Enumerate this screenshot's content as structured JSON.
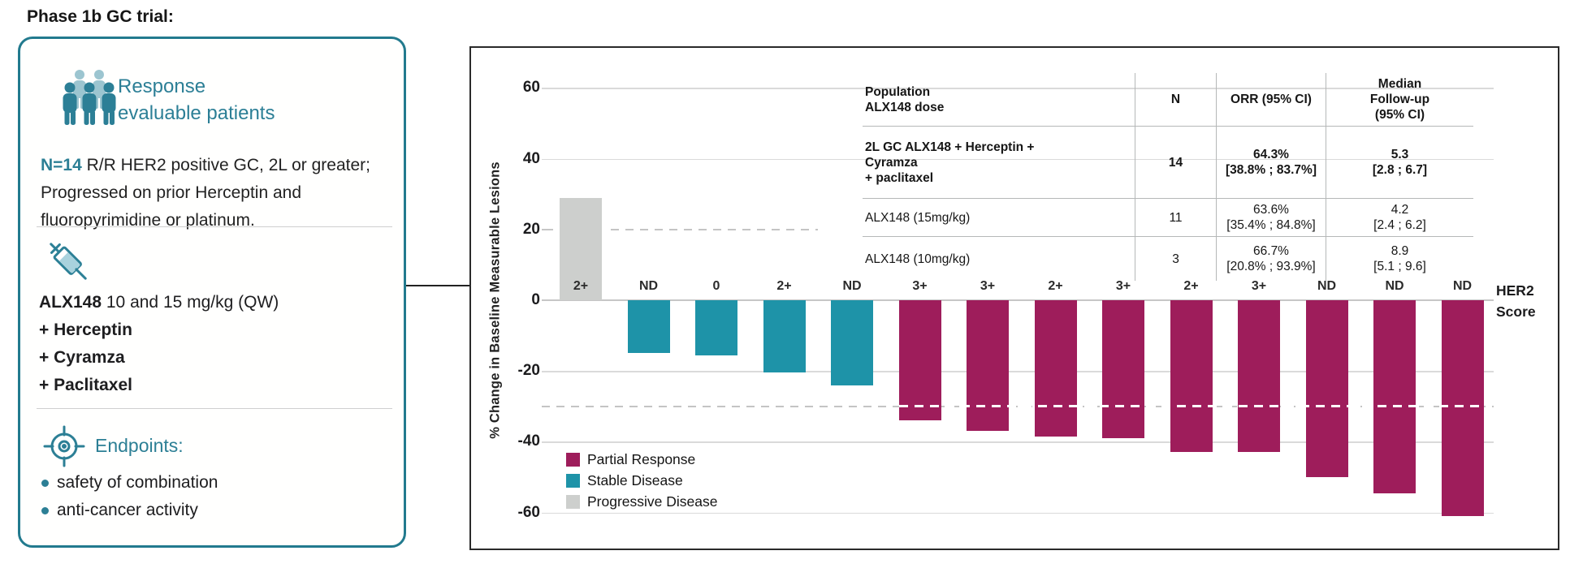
{
  "page": {
    "title": "Phase 1b GC trial:"
  },
  "info_card": {
    "patients_title": "Response\nevaluable patients",
    "n_label": "N=14",
    "n_description": "R/R HER2 positive GC,  2L or greater; Progressed on prior Herceptin and fluoropyrimidine or platinum.",
    "regimen_drug": "ALX148",
    "regimen_dose": " 10 and 15 mg/kg (QW)",
    "regimen_combos": [
      "+ Herceptin",
      "+ Cyramza",
      "+ Paclitaxel"
    ],
    "endpoints_title": "Endpoints:",
    "endpoints": [
      "safety of combination",
      "anti-cancer activity"
    ]
  },
  "chart_data": {
    "type": "bar",
    "title": "",
    "xlabel": "",
    "ylabel": "% Change in Baseline Measurable Lesions",
    "ylim": [
      -65,
      65
    ],
    "yticks": [
      60,
      40,
      20,
      0,
      -20,
      -40,
      -60
    ],
    "solid_gridlines": [
      60,
      40,
      -20,
      -40,
      -60
    ],
    "dashed_reference_lines": [
      20,
      -30
    ],
    "x_axis_right_label": "HER2\nScore",
    "categories": [
      "2+",
      "ND",
      "0",
      "2+",
      "ND",
      "3+",
      "3+",
      "2+",
      "3+",
      "2+",
      "3+",
      "ND",
      "ND",
      "ND"
    ],
    "values": [
      29,
      -15,
      -15.5,
      -20.3,
      -24,
      -34,
      -37,
      -38.5,
      -39,
      -43,
      -43,
      -50,
      -54.5,
      -61
    ],
    "responses": [
      "Progressive Disease",
      "Stable Disease",
      "Stable Disease",
      "Stable Disease",
      "Stable Disease",
      "Partial Response",
      "Partial Response",
      "Partial Response",
      "Partial Response",
      "Partial Response",
      "Partial Response",
      "Partial Response",
      "Partial Response",
      "Partial Response"
    ],
    "legend_position": "lower-left",
    "legend": [
      {
        "label": "Partial Response",
        "color": "#9E1D5B"
      },
      {
        "label": "Stable Disease",
        "color": "#1E93A8"
      },
      {
        "label": "Progressive Disease",
        "color": "#CDCFCD"
      }
    ]
  },
  "results_table": {
    "col_headers": [
      "Population\nALX148 dose",
      "N",
      "ORR (95% CI)",
      "Median\nFollow-up\n(95% CI)"
    ],
    "rows": [
      {
        "population": "2L GC  ALX148 + Herceptin +\nCyramza\n+ paclitaxel",
        "n": "14",
        "orr": "64.3%\n[38.8% ; 83.7%]",
        "median_follow_up": "5.3\n[2.8 ; 6.7]",
        "emphasis": true
      },
      {
        "population": "ALX148 (15mg/kg)",
        "n": "11",
        "orr": "63.6%\n[35.4% ; 84.8%]",
        "median_follow_up": "4.2\n[2.4 ; 6.2]",
        "emphasis": false
      },
      {
        "population": "ALX148 (10mg/kg)",
        "n": "3",
        "orr": "66.7%\n[20.8% ; 93.9%]",
        "median_follow_up": "8.9\n[5.1 ; 9.6]",
        "emphasis": false
      }
    ]
  },
  "colors": {
    "accent_teal": "#227A8E",
    "teal_text": "#2C7F95",
    "bar_teal": "#1E93A8",
    "bar_maroon": "#9E1D5B",
    "bar_gray": "#CDCFCD",
    "gridline": "#DADADA",
    "text_dark": "#1B1B1D"
  }
}
